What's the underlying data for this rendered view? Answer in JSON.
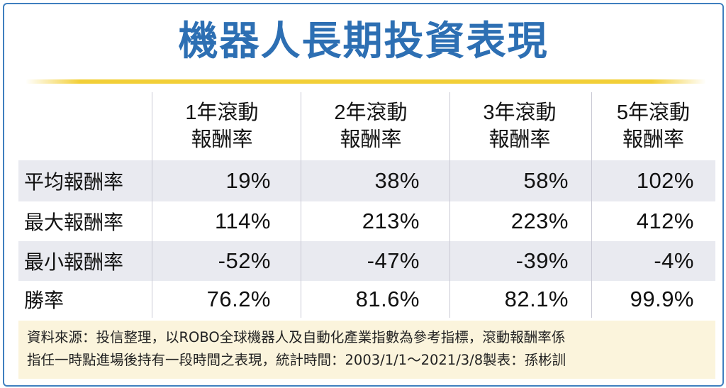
{
  "title": "機器人長期投資表現",
  "columns": [
    {
      "line1": "1年滾動",
      "line2": "報酬率"
    },
    {
      "line1": "2年滾動",
      "line2": "報酬率"
    },
    {
      "line1": "3年滾動",
      "line2": "報酬率"
    },
    {
      "line1": "5年滾動",
      "line2": "報酬率"
    }
  ],
  "rows": [
    {
      "label": "平均報酬率",
      "values": [
        "19%",
        "38%",
        "58%",
        "102%"
      ]
    },
    {
      "label": "最大報酬率",
      "values": [
        "114%",
        "213%",
        "223%",
        "412%"
      ]
    },
    {
      "label": "最小報酬率",
      "values": [
        "-52%",
        "-47%",
        "-39%",
        "-4%"
      ]
    },
    {
      "label": "勝率",
      "values": [
        "76.2%",
        "81.6%",
        "82.1%",
        "99.9%"
      ]
    }
  ],
  "footer": {
    "line1": "資料來源：投信整理，以ROBO全球機器人及自動化產業指數為參考指標，滾動報酬率係",
    "line2": "指任一時點進場後持有一段時間之表現，統計時間：2003/1/1～2021/3/8製表：孫彬訓"
  },
  "colors": {
    "title": "#2d6fb3",
    "frame": "#3f7fbf",
    "rule": "#f2cf37",
    "row_shade": "#e9eaf0",
    "footer_bg": "#fbf4dc"
  }
}
